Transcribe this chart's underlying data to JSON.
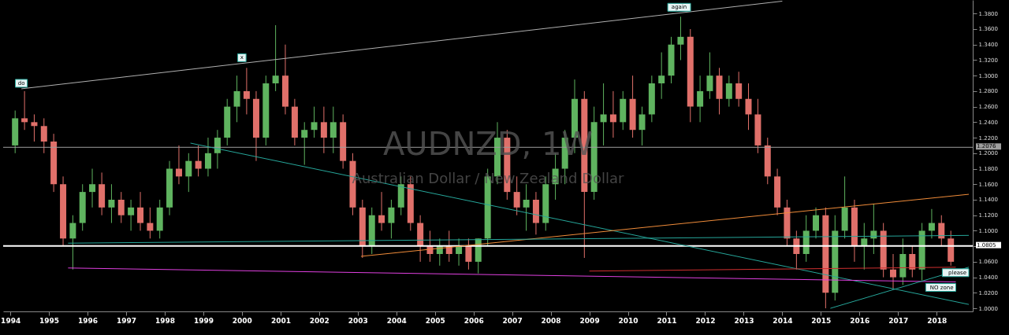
{
  "chart_data": {
    "type": "candlestick",
    "title": "AUDNZD, 1W",
    "subtitle": "Australian Dollar / New Zealand Dollar",
    "x": [
      "1994-02-15",
      "1994-05-15",
      "1994-08-15",
      "1994-11-15",
      "1995-02-15",
      "1995-05-15",
      "1995-08-15",
      "1995-11-15",
      "1996-02-15",
      "1996-05-15",
      "1996-08-15",
      "1996-11-15",
      "1997-02-15",
      "1997-05-15",
      "1997-08-15",
      "1997-11-15",
      "1998-02-15",
      "1998-05-15",
      "1998-08-15",
      "1998-11-15",
      "1999-02-15",
      "1999-05-15",
      "1999-08-15",
      "1999-11-15",
      "2000-02-15",
      "2000-05-15",
      "2000-08-15",
      "2000-11-15",
      "2001-02-15",
      "2001-05-15",
      "2001-08-15",
      "2001-11-15",
      "2002-02-15",
      "2002-05-15",
      "2002-08-15",
      "2002-11-15",
      "2003-02-15",
      "2003-05-15",
      "2003-08-15",
      "2003-11-15",
      "2004-02-15",
      "2004-05-15",
      "2004-08-15",
      "2004-11-15",
      "2005-02-15",
      "2005-05-15",
      "2005-08-15",
      "2005-11-15",
      "2006-02-15",
      "2006-05-15",
      "2006-08-15",
      "2006-11-15",
      "2007-02-15",
      "2007-05-15",
      "2007-08-15",
      "2007-11-15",
      "2008-02-15",
      "2008-05-15",
      "2008-08-15",
      "2008-11-15",
      "2009-02-15",
      "2009-05-15",
      "2009-08-15",
      "2009-11-15",
      "2010-02-15",
      "2010-05-15",
      "2010-08-15",
      "2010-11-15",
      "2011-02-15",
      "2011-05-15",
      "2011-08-15",
      "2011-11-15",
      "2012-02-15",
      "2012-05-15",
      "2012-08-15",
      "2012-11-15",
      "2013-02-15",
      "2013-05-15",
      "2013-08-15",
      "2013-11-15",
      "2014-02-15",
      "2014-05-15",
      "2014-08-15",
      "2014-11-15",
      "2015-02-15",
      "2015-05-15",
      "2015-08-15",
      "2015-11-15",
      "2016-02-15",
      "2016-05-15",
      "2016-08-15",
      "2016-11-15",
      "2017-02-15",
      "2017-05-15",
      "2017-08-15",
      "2017-11-15",
      "2018-02-15",
      "2018-05-15"
    ],
    "ohlc": [
      [
        1.21,
        1.255,
        1.2,
        1.245
      ],
      [
        1.245,
        1.28,
        1.23,
        1.24
      ],
      [
        1.24,
        1.25,
        1.215,
        1.235
      ],
      [
        1.235,
        1.245,
        1.2,
        1.215
      ],
      [
        1.215,
        1.225,
        1.15,
        1.16
      ],
      [
        1.16,
        1.17,
        1.08,
        1.09
      ],
      [
        1.09,
        1.12,
        1.05,
        1.11
      ],
      [
        1.11,
        1.16,
        1.1,
        1.15
      ],
      [
        1.15,
        1.18,
        1.13,
        1.16
      ],
      [
        1.16,
        1.175,
        1.12,
        1.13
      ],
      [
        1.13,
        1.16,
        1.11,
        1.14
      ],
      [
        1.14,
        1.15,
        1.11,
        1.12
      ],
      [
        1.12,
        1.14,
        1.1,
        1.13
      ],
      [
        1.13,
        1.15,
        1.1,
        1.11
      ],
      [
        1.11,
        1.13,
        1.09,
        1.1
      ],
      [
        1.1,
        1.14,
        1.09,
        1.13
      ],
      [
        1.13,
        1.19,
        1.12,
        1.18
      ],
      [
        1.18,
        1.21,
        1.16,
        1.17
      ],
      [
        1.17,
        1.2,
        1.15,
        1.19
      ],
      [
        1.19,
        1.21,
        1.17,
        1.18
      ],
      [
        1.18,
        1.22,
        1.17,
        1.2
      ],
      [
        1.2,
        1.23,
        1.18,
        1.22
      ],
      [
        1.22,
        1.27,
        1.21,
        1.26
      ],
      [
        1.26,
        1.3,
        1.24,
        1.28
      ],
      [
        1.28,
        1.31,
        1.25,
        1.27
      ],
      [
        1.27,
        1.28,
        1.19,
        1.22
      ],
      [
        1.22,
        1.3,
        1.21,
        1.29
      ],
      [
        1.29,
        1.365,
        1.28,
        1.3
      ],
      [
        1.3,
        1.34,
        1.25,
        1.26
      ],
      [
        1.26,
        1.27,
        1.21,
        1.22
      ],
      [
        1.22,
        1.24,
        1.185,
        1.23
      ],
      [
        1.23,
        1.26,
        1.22,
        1.24
      ],
      [
        1.24,
        1.26,
        1.2,
        1.22
      ],
      [
        1.22,
        1.26,
        1.2,
        1.24
      ],
      [
        1.24,
        1.25,
        1.18,
        1.19
      ],
      [
        1.19,
        1.2,
        1.12,
        1.13
      ],
      [
        1.13,
        1.14,
        1.065,
        1.08
      ],
      [
        1.08,
        1.13,
        1.07,
        1.12
      ],
      [
        1.12,
        1.15,
        1.1,
        1.11
      ],
      [
        1.11,
        1.14,
        1.09,
        1.13
      ],
      [
        1.13,
        1.17,
        1.12,
        1.16
      ],
      [
        1.16,
        1.17,
        1.1,
        1.11
      ],
      [
        1.11,
        1.12,
        1.06,
        1.08
      ],
      [
        1.08,
        1.1,
        1.06,
        1.07
      ],
      [
        1.07,
        1.09,
        1.055,
        1.08
      ],
      [
        1.08,
        1.1,
        1.06,
        1.07
      ],
      [
        1.07,
        1.09,
        1.055,
        1.08
      ],
      [
        1.08,
        1.09,
        1.05,
        1.06
      ],
      [
        1.06,
        1.09,
        1.045,
        1.09
      ],
      [
        1.09,
        1.18,
        1.08,
        1.17
      ],
      [
        1.17,
        1.24,
        1.16,
        1.22
      ],
      [
        1.22,
        1.23,
        1.14,
        1.15
      ],
      [
        1.15,
        1.17,
        1.12,
        1.13
      ],
      [
        1.13,
        1.16,
        1.1,
        1.14
      ],
      [
        1.14,
        1.15,
        1.095,
        1.11
      ],
      [
        1.11,
        1.17,
        1.1,
        1.16
      ],
      [
        1.16,
        1.2,
        1.14,
        1.18
      ],
      [
        1.18,
        1.23,
        1.16,
        1.22
      ],
      [
        1.22,
        1.295,
        1.2,
        1.27
      ],
      [
        1.27,
        1.28,
        1.065,
        1.15
      ],
      [
        1.15,
        1.26,
        1.14,
        1.24
      ],
      [
        1.24,
        1.29,
        1.21,
        1.25
      ],
      [
        1.25,
        1.28,
        1.22,
        1.24
      ],
      [
        1.24,
        1.28,
        1.23,
        1.27
      ],
      [
        1.27,
        1.3,
        1.22,
        1.23
      ],
      [
        1.23,
        1.26,
        1.21,
        1.25
      ],
      [
        1.25,
        1.3,
        1.24,
        1.29
      ],
      [
        1.29,
        1.33,
        1.27,
        1.3
      ],
      [
        1.3,
        1.35,
        1.29,
        1.34
      ],
      [
        1.34,
        1.376,
        1.32,
        1.35
      ],
      [
        1.35,
        1.36,
        1.24,
        1.26
      ],
      [
        1.26,
        1.3,
        1.24,
        1.28
      ],
      [
        1.28,
        1.33,
        1.27,
        1.3
      ],
      [
        1.3,
        1.31,
        1.25,
        1.27
      ],
      [
        1.27,
        1.3,
        1.26,
        1.29
      ],
      [
        1.29,
        1.305,
        1.26,
        1.27
      ],
      [
        1.27,
        1.29,
        1.23,
        1.25
      ],
      [
        1.25,
        1.27,
        1.2,
        1.21
      ],
      [
        1.21,
        1.22,
        1.16,
        1.17
      ],
      [
        1.17,
        1.18,
        1.12,
        1.13
      ],
      [
        1.13,
        1.14,
        1.08,
        1.09
      ],
      [
        1.09,
        1.1,
        1.05,
        1.07
      ],
      [
        1.07,
        1.12,
        1.06,
        1.1
      ],
      [
        1.1,
        1.13,
        1.09,
        1.12
      ],
      [
        1.12,
        1.13,
        1.0,
        1.02
      ],
      [
        1.02,
        1.12,
        1.01,
        1.1
      ],
      [
        1.1,
        1.17,
        1.09,
        1.13
      ],
      [
        1.13,
        1.14,
        1.06,
        1.08
      ],
      [
        1.08,
        1.11,
        1.05,
        1.09
      ],
      [
        1.09,
        1.135,
        1.07,
        1.1
      ],
      [
        1.1,
        1.11,
        1.04,
        1.05
      ],
      [
        1.05,
        1.07,
        1.025,
        1.04
      ],
      [
        1.04,
        1.09,
        1.03,
        1.07
      ],
      [
        1.07,
        1.08,
        1.04,
        1.05
      ],
      [
        1.05,
        1.11,
        1.036,
        1.1
      ],
      [
        1.1,
        1.128,
        1.09,
        1.11
      ],
      [
        1.11,
        1.12,
        1.08,
        1.09
      ],
      [
        1.09,
        1.1,
        1.055,
        1.06
      ]
    ],
    "series": [
      {
        "type": "line",
        "color": "#b0b0b0",
        "x": [
          "1994-04-15",
          "2014-01-01"
        ],
        "values": [
          1.283,
          1.396
        ]
      },
      {
        "type": "line",
        "color": "#26a69a",
        "x": [
          "1998-09-01",
          "2018-11-01"
        ],
        "values": [
          1.213,
          1.005
        ]
      },
      {
        "type": "line",
        "color": "#f08c3a",
        "x": [
          "2003-02-01",
          "2018-11-01"
        ],
        "values": [
          1.067,
          1.147
        ]
      },
      {
        "type": "line",
        "color": "#26a69a",
        "x": [
          "1995-07-01",
          "2018-11-01"
        ],
        "values": [
          1.084,
          1.094
        ]
      },
      {
        "type": "line",
        "color": "#e040e0",
        "x": [
          "1995-07-01",
          "2018-07-01"
        ],
        "values": [
          1.052,
          1.034
        ]
      },
      {
        "type": "line",
        "color": "#d03030",
        "x": [
          "2009-01-01",
          "2018-07-01"
        ],
        "values": [
          1.048,
          1.053
        ]
      },
      {
        "type": "line",
        "color": "#26a69a",
        "x": [
          "2015-04-01",
          "2018-11-01"
        ],
        "values": [
          1.0,
          1.053
        ]
      }
    ],
    "ref_lines": [
      {
        "axis": "y",
        "value": 1.2076,
        "label": "1.2076",
        "color": "#9e9e9e"
      },
      {
        "axis": "y",
        "value": 1.0805,
        "label": "1.0805",
        "color": "#ffffff"
      }
    ],
    "annotations": [
      {
        "text": "do",
        "x": "1994-04-15",
        "y": 1.283
      },
      {
        "text": "x",
        "x": "2000-01-01",
        "y": 1.316
      },
      {
        "text": "again",
        "x": "2011-05-01",
        "y": 1.381
      },
      {
        "text": "please",
        "x": "2018-11-01",
        "y": 1.053
      },
      {
        "text": "NO zone",
        "x": "2018-07-01",
        "y": 1.034
      }
    ],
    "xlim": [
      "1993-12-01",
      "2018-11-01"
    ],
    "xticks": [
      {
        "value": "1994",
        "label": "1994"
      },
      {
        "value": "1995",
        "label": "1995"
      },
      {
        "value": "1996",
        "label": "1996"
      },
      {
        "value": "1997",
        "label": "1997"
      },
      {
        "value": "1998",
        "label": "1998"
      },
      {
        "value": "1999",
        "label": "1999"
      },
      {
        "value": "2000",
        "label": "2000"
      },
      {
        "value": "2001",
        "label": "2001"
      },
      {
        "value": "2002",
        "label": "2002"
      },
      {
        "value": "2003",
        "label": "2003"
      },
      {
        "value": "2004",
        "label": "2004"
      },
      {
        "value": "2005",
        "label": "2005"
      },
      {
        "value": "2006",
        "label": "2006"
      },
      {
        "value": "2007",
        "label": "2007"
      },
      {
        "value": "2008",
        "label": "2008"
      },
      {
        "value": "2009",
        "label": "2009"
      },
      {
        "value": "2010",
        "label": "2010"
      },
      {
        "value": "2011",
        "label": "2011"
      },
      {
        "value": "2012",
        "label": "2012"
      },
      {
        "value": "2013",
        "label": "2013"
      },
      {
        "value": "2014",
        "label": "2014"
      },
      {
        "value": "2015",
        "label": "2015"
      },
      {
        "value": "2016",
        "label": "2016"
      },
      {
        "value": "2017",
        "label": "2017"
      },
      {
        "value": "2018",
        "label": "2018"
      }
    ],
    "ylim": [
      0.996,
      1.3975
    ],
    "yticks": [
      {
        "value": 1.0,
        "label": "1.0000"
      },
      {
        "value": 1.02,
        "label": "1.0200"
      },
      {
        "value": 1.04,
        "label": "1.0400"
      },
      {
        "value": 1.06,
        "label": "1.0600"
      },
      {
        "value": 1.08,
        "label": null
      },
      {
        "value": 1.1,
        "label": "1.1000"
      },
      {
        "value": 1.12,
        "label": "1.1200"
      },
      {
        "value": 1.14,
        "label": "1.1400"
      },
      {
        "value": 1.16,
        "label": "1.1600"
      },
      {
        "value": 1.18,
        "label": "1.1800"
      },
      {
        "value": 1.2,
        "label": "1.2000"
      },
      {
        "value": 1.22,
        "label": "1.2200"
      },
      {
        "value": 1.24,
        "label": "1.2400"
      },
      {
        "value": 1.26,
        "label": "1.2600"
      },
      {
        "value": 1.28,
        "label": "1.2800"
      },
      {
        "value": 1.3,
        "label": "1.3000"
      },
      {
        "value": 1.32,
        "label": "1.3200"
      },
      {
        "value": 1.34,
        "label": "1.3400"
      },
      {
        "value": 1.36,
        "label": "1.3600"
      },
      {
        "value": 1.38,
        "label": "1.3800"
      }
    ],
    "grid": false
  }
}
